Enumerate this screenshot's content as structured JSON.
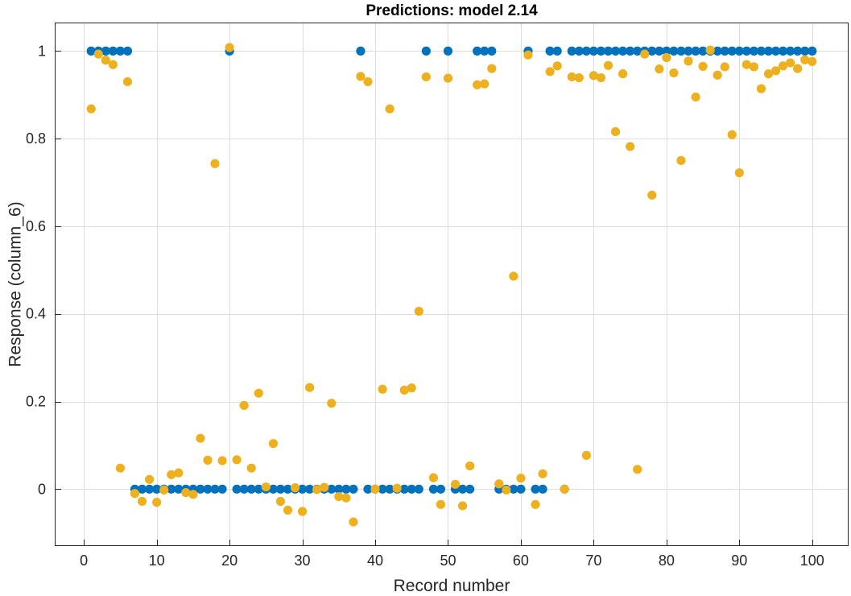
{
  "chart_data": {
    "type": "scatter",
    "title": "Predictions: model 2.14",
    "xlabel": "Record number",
    "ylabel": "Response (column_6)",
    "xlim": [
      -4,
      105
    ],
    "ylim": [
      -0.13,
      1.065
    ],
    "xticks": [
      0,
      10,
      20,
      30,
      40,
      50,
      60,
      70,
      80,
      90,
      100
    ],
    "yticks": [
      0,
      0.2,
      0.4,
      0.6,
      0.8,
      1
    ],
    "ytick_labels": [
      "0",
      "0.2",
      "0.4",
      "0.6",
      "0.8",
      "1"
    ],
    "grid": true,
    "colors": {
      "true": "#0072BD",
      "predicted": "#EDB120"
    },
    "series": [
      {
        "key": "true",
        "x": [
          1,
          2,
          3,
          4,
          5,
          6,
          7,
          8,
          9,
          10,
          11,
          12,
          13,
          14,
          15,
          16,
          17,
          18,
          19,
          20,
          21,
          22,
          23,
          24,
          25,
          26,
          27,
          28,
          29,
          30,
          31,
          32,
          33,
          34,
          35,
          36,
          37,
          38,
          39,
          40,
          41,
          42,
          43,
          44,
          45,
          46,
          47,
          48,
          49,
          50,
          51,
          52,
          53,
          54,
          55,
          56,
          57,
          58,
          59,
          60,
          61,
          62,
          63,
          64,
          65,
          66,
          67,
          68,
          69,
          70,
          71,
          72,
          73,
          74,
          75,
          76,
          77,
          78,
          79,
          80,
          81,
          82,
          83,
          84,
          85,
          86,
          87,
          88,
          89,
          90,
          91,
          92,
          93,
          94,
          95,
          96,
          97,
          98,
          99,
          100
        ],
        "y": [
          1,
          1,
          1,
          1,
          1,
          1,
          0,
          0,
          0,
          0,
          0,
          0,
          0,
          0,
          0,
          0,
          0,
          0,
          0,
          1,
          0,
          0,
          0,
          0,
          0,
          0,
          0,
          0,
          0,
          0,
          0,
          0,
          0,
          0,
          0,
          0,
          0,
          1,
          0,
          0,
          0,
          0,
          0,
          0,
          0,
          0,
          1,
          0,
          0,
          1,
          0,
          0,
          0,
          1,
          1,
          1,
          0,
          0,
          0,
          0,
          1,
          0,
          0,
          1,
          1,
          0,
          1,
          1,
          1,
          1,
          1,
          1,
          1,
          1,
          1,
          1,
          1,
          1,
          1,
          1,
          1,
          1,
          1,
          1,
          1,
          1,
          1,
          1,
          1,
          1,
          1,
          1,
          1,
          1,
          1,
          1,
          1,
          1,
          1,
          1
        ]
      },
      {
        "key": "predicted",
        "x": [
          1,
          2,
          3,
          4,
          5,
          6,
          7,
          8,
          9,
          10,
          11,
          12,
          13,
          14,
          15,
          16,
          17,
          18,
          19,
          20,
          21,
          22,
          23,
          24,
          25,
          26,
          27,
          28,
          29,
          30,
          31,
          32,
          33,
          34,
          35,
          36,
          37,
          38,
          39,
          40,
          41,
          42,
          43,
          44,
          45,
          46,
          47,
          48,
          49,
          50,
          51,
          52,
          53,
          54,
          55,
          56,
          57,
          58,
          59,
          60,
          61,
          62,
          63,
          64,
          65,
          66,
          67,
          68,
          69,
          70,
          71,
          72,
          73,
          74,
          75,
          76,
          77,
          78,
          79,
          80,
          81,
          82,
          83,
          84,
          85,
          86,
          87,
          88,
          89,
          90,
          91,
          92,
          93,
          94,
          95,
          96,
          97,
          98,
          99,
          100
        ],
        "y": [
          0.868,
          0.993,
          0.979,
          0.969,
          0.048,
          0.93,
          -0.01,
          -0.028,
          0.022,
          -0.03,
          -0.002,
          0.033,
          0.037,
          -0.008,
          -0.012,
          0.116,
          0.066,
          0.743,
          0.065,
          1.008,
          0.067,
          0.191,
          0.048,
          0.219,
          0.005,
          0.104,
          -0.028,
          -0.048,
          0.003,
          -0.051,
          0.232,
          -0.001,
          0.004,
          0.196,
          -0.017,
          -0.02,
          -0.075,
          0.942,
          0.93,
          0.0,
          0.228,
          0.868,
          0.002,
          0.226,
          0.231,
          0.406,
          0.941,
          0.026,
          -0.035,
          0.938,
          0.011,
          -0.038,
          0.053,
          0.923,
          0.925,
          0.96,
          0.012,
          -0.002,
          0.486,
          0.025,
          0.991,
          -0.035,
          0.035,
          0.953,
          0.966,
          0.0,
          0.941,
          0.939,
          0.077,
          0.944,
          0.939,
          0.967,
          0.816,
          0.948,
          0.782,
          0.045,
          0.993,
          0.671,
          0.959,
          0.985,
          0.95,
          0.75,
          0.977,
          0.895,
          0.965,
          1.002,
          0.945,
          0.964,
          0.809,
          0.722,
          0.969,
          0.964,
          0.914,
          0.948,
          0.955,
          0.966,
          0.973,
          0.96,
          0.98,
          0.976
        ]
      }
    ]
  }
}
